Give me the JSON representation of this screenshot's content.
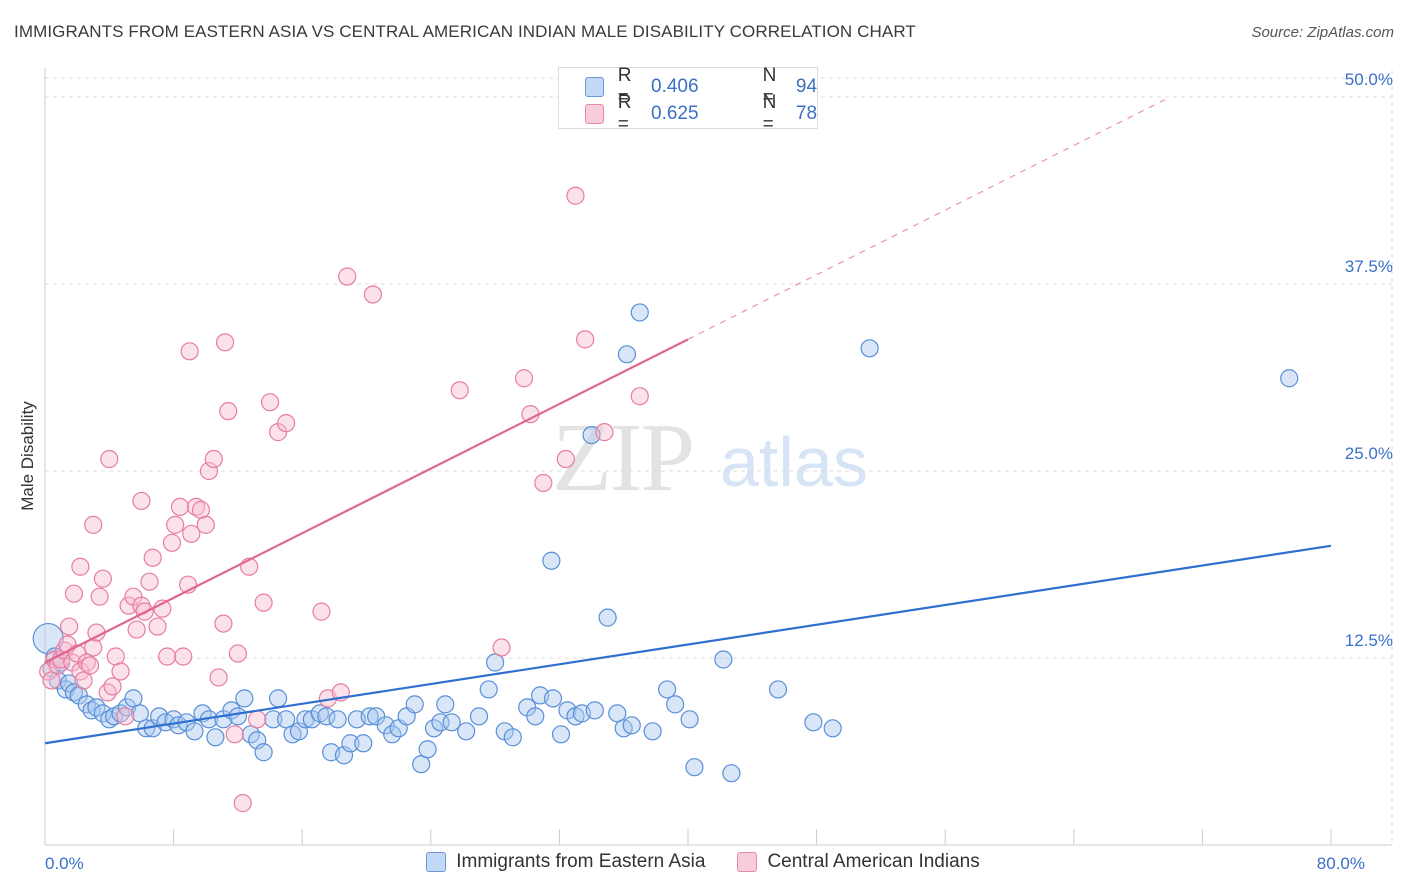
{
  "title": "IMMIGRANTS FROM EASTERN ASIA VS CENTRAL AMERICAN INDIAN MALE DISABILITY CORRELATION CHART",
  "source": "Source: ZipAtlas.com",
  "watermark": {
    "zip": "ZIP",
    "atlas": "atlas"
  },
  "legend_top": [
    {
      "r_label": "R =",
      "r_value": "0.406",
      "n_label": "N =",
      "n_value": "94"
    },
    {
      "r_label": "R =",
      "r_value": "0.625",
      "n_label": "N =",
      "n_value": "78"
    }
  ],
  "colors": {
    "blue_fill": "#a9c8f0",
    "blue_stroke": "#5a8fd8",
    "blue_line": "#2f6fd0",
    "pink_fill": "#f6bfd0",
    "pink_stroke": "#e87da0",
    "pink_line": "#e0668f",
    "tick_text": "#3a70c8",
    "grid": "#dddddd"
  },
  "chart_data": {
    "type": "scatter",
    "title": "IMMIGRANTS FROM EASTERN ASIA VS CENTRAL AMERICAN INDIAN MALE DISABILITY CORRELATION CHART",
    "xlabel": "",
    "ylabel": "Male Disability",
    "xlim": [
      0,
      80
    ],
    "ylim": [
      0,
      52
    ],
    "x_tick_labels": [
      {
        "value": 0,
        "label": "0.0%"
      },
      {
        "value": 80,
        "label": "80.0%"
      }
    ],
    "y_tick_labels": [
      {
        "value": 12.5,
        "label": "12.5%"
      },
      {
        "value": 25,
        "label": "25.0%"
      },
      {
        "value": 37.5,
        "label": "37.5%"
      },
      {
        "value": 50,
        "label": "50.0%"
      }
    ],
    "grid": true,
    "legend_position": "bottom",
    "series": [
      {
        "name": "Immigrants from Eastern Asia",
        "color": "blue",
        "trend": {
          "x1": 0,
          "y1": 6.8,
          "x2": 80,
          "y2": 20.0
        },
        "points": [
          [
            0.2,
            13.8
          ],
          [
            0.4,
            11.8
          ],
          [
            0.6,
            12.6
          ],
          [
            0.8,
            11.0
          ],
          [
            1.0,
            12.2
          ],
          [
            1.3,
            10.4
          ],
          [
            1.5,
            10.8
          ],
          [
            1.8,
            10.2
          ],
          [
            2.1,
            10.0
          ],
          [
            2.6,
            9.4
          ],
          [
            2.9,
            9.0
          ],
          [
            3.2,
            9.2
          ],
          [
            3.6,
            8.8
          ],
          [
            4.0,
            8.4
          ],
          [
            4.3,
            8.6
          ],
          [
            4.7,
            8.8
          ],
          [
            5.1,
            9.2
          ],
          [
            5.5,
            9.8
          ],
          [
            5.9,
            8.8
          ],
          [
            6.3,
            7.8
          ],
          [
            6.7,
            7.8
          ],
          [
            7.1,
            8.6
          ],
          [
            7.5,
            8.2
          ],
          [
            8.0,
            8.4
          ],
          [
            8.3,
            8.0
          ],
          [
            8.8,
            8.2
          ],
          [
            9.3,
            7.6
          ],
          [
            9.8,
            8.8
          ],
          [
            10.2,
            8.4
          ],
          [
            10.6,
            7.2
          ],
          [
            11.1,
            8.4
          ],
          [
            11.6,
            9.0
          ],
          [
            12.0,
            8.6
          ],
          [
            12.4,
            9.8
          ],
          [
            12.8,
            7.4
          ],
          [
            13.2,
            7.0
          ],
          [
            13.6,
            6.2
          ],
          [
            14.2,
            8.4
          ],
          [
            14.5,
            9.8
          ],
          [
            15.0,
            8.4
          ],
          [
            15.4,
            7.4
          ],
          [
            15.8,
            7.6
          ],
          [
            16.2,
            8.4
          ],
          [
            16.6,
            8.4
          ],
          [
            17.1,
            8.8
          ],
          [
            17.5,
            8.6
          ],
          [
            17.8,
            6.2
          ],
          [
            18.2,
            8.4
          ],
          [
            18.6,
            6.0
          ],
          [
            19.0,
            6.8
          ],
          [
            19.4,
            8.4
          ],
          [
            19.8,
            6.8
          ],
          [
            20.2,
            8.6
          ],
          [
            20.6,
            8.6
          ],
          [
            21.2,
            8.0
          ],
          [
            21.6,
            7.4
          ],
          [
            22.0,
            7.8
          ],
          [
            22.5,
            8.6
          ],
          [
            23.0,
            9.4
          ],
          [
            23.4,
            5.4
          ],
          [
            23.8,
            6.4
          ],
          [
            24.2,
            7.8
          ],
          [
            24.6,
            8.2
          ],
          [
            24.9,
            9.4
          ],
          [
            25.3,
            8.2
          ],
          [
            26.2,
            7.6
          ],
          [
            27.0,
            8.6
          ],
          [
            27.6,
            10.4
          ],
          [
            28.0,
            12.2
          ],
          [
            28.6,
            7.6
          ],
          [
            29.1,
            7.2
          ],
          [
            30.0,
            9.2
          ],
          [
            30.5,
            8.6
          ],
          [
            30.8,
            10.0
          ],
          [
            31.6,
            9.8
          ],
          [
            32.1,
            7.4
          ],
          [
            32.5,
            9.0
          ],
          [
            33.0,
            8.6
          ],
          [
            33.4,
            8.8
          ],
          [
            34.2,
            9.0
          ],
          [
            31.5,
            19.0
          ],
          [
            35.0,
            15.2
          ],
          [
            35.6,
            8.8
          ],
          [
            36.0,
            7.8
          ],
          [
            36.2,
            32.8
          ],
          [
            37.0,
            35.6
          ],
          [
            36.5,
            8.0
          ],
          [
            37.8,
            7.6
          ],
          [
            38.7,
            10.4
          ],
          [
            39.2,
            9.4
          ],
          [
            40.1,
            8.4
          ],
          [
            40.4,
            5.2
          ],
          [
            42.2,
            12.4
          ],
          [
            42.7,
            4.8
          ],
          [
            45.6,
            10.4
          ],
          [
            47.8,
            8.2
          ],
          [
            49.0,
            7.8
          ],
          [
            51.3,
            33.2
          ],
          [
            77.4,
            31.2
          ],
          [
            34.0,
            27.4
          ]
        ]
      },
      {
        "name": "Central American Indians",
        "color": "pink",
        "trend": {
          "x1": 0,
          "y1": 12.2,
          "x2": 40,
          "y2": 33.8,
          "dash_to": {
            "x": 70,
            "y": 50
          }
        },
        "points": [
          [
            0.2,
            11.6
          ],
          [
            0.4,
            11.0
          ],
          [
            0.6,
            12.4
          ],
          [
            0.8,
            12.0
          ],
          [
            1.0,
            12.4
          ],
          [
            1.2,
            13.0
          ],
          [
            1.4,
            13.4
          ],
          [
            1.5,
            14.6
          ],
          [
            1.7,
            12.2
          ],
          [
            2.0,
            12.8
          ],
          [
            2.2,
            11.6
          ],
          [
            2.4,
            11.0
          ],
          [
            2.6,
            12.2
          ],
          [
            2.8,
            12.0
          ],
          [
            3.0,
            13.2
          ],
          [
            3.2,
            14.2
          ],
          [
            3.4,
            16.6
          ],
          [
            3.6,
            17.8
          ],
          [
            3.9,
            10.2
          ],
          [
            4.2,
            10.6
          ],
          [
            4.4,
            12.6
          ],
          [
            4.7,
            11.6
          ],
          [
            5.0,
            8.6
          ],
          [
            5.2,
            16.0
          ],
          [
            5.5,
            16.6
          ],
          [
            5.7,
            14.4
          ],
          [
            6.0,
            16.0
          ],
          [
            6.2,
            15.6
          ],
          [
            6.5,
            17.6
          ],
          [
            6.7,
            19.2
          ],
          [
            7.0,
            14.6
          ],
          [
            7.3,
            15.8
          ],
          [
            7.6,
            12.6
          ],
          [
            7.9,
            20.2
          ],
          [
            8.1,
            21.4
          ],
          [
            8.4,
            22.6
          ],
          [
            8.6,
            12.6
          ],
          [
            8.9,
            17.4
          ],
          [
            9.1,
            20.8
          ],
          [
            9.4,
            22.6
          ],
          [
            9.7,
            22.4
          ],
          [
            10.0,
            21.4
          ],
          [
            10.2,
            25.0
          ],
          [
            10.5,
            25.8
          ],
          [
            10.8,
            11.2
          ],
          [
            11.1,
            14.8
          ],
          [
            11.4,
            29.0
          ],
          [
            11.8,
            7.4
          ],
          [
            12.3,
            2.8
          ],
          [
            12.7,
            18.6
          ],
          [
            13.2,
            8.4
          ],
          [
            13.6,
            16.2
          ],
          [
            14.0,
            29.6
          ],
          [
            14.5,
            27.6
          ],
          [
            15.0,
            28.2
          ],
          [
            17.2,
            15.6
          ],
          [
            17.6,
            9.8
          ],
          [
            18.4,
            10.2
          ],
          [
            18.8,
            38.0
          ],
          [
            20.4,
            36.8
          ],
          [
            25.8,
            30.4
          ],
          [
            28.4,
            13.2
          ],
          [
            29.8,
            31.2
          ],
          [
            30.2,
            28.8
          ],
          [
            31.0,
            24.2
          ],
          [
            32.4,
            25.8
          ],
          [
            33.0,
            43.4
          ],
          [
            33.6,
            33.8
          ],
          [
            34.8,
            27.6
          ],
          [
            37.0,
            30.0
          ],
          [
            9.0,
            33.0
          ],
          [
            11.2,
            33.6
          ],
          [
            4.0,
            25.8
          ],
          [
            6.0,
            23.0
          ],
          [
            3.0,
            21.4
          ],
          [
            2.2,
            18.6
          ],
          [
            1.8,
            16.8
          ],
          [
            12.0,
            12.8
          ]
        ]
      }
    ]
  }
}
